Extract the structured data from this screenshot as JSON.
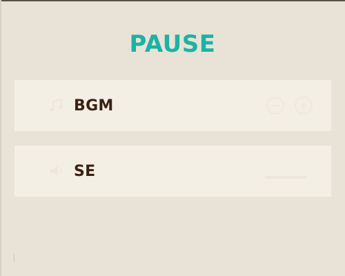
{
  "title": "PAUSE",
  "settings": [
    {
      "label": "BGM",
      "icon": "music-icon"
    },
    {
      "label": "SE",
      "icon": "speaker-icon"
    }
  ],
  "colors": {
    "background": "#e9e2d7",
    "row": "#f4efe5",
    "title": "#1bb3a4",
    "label": "#3a2212"
  }
}
